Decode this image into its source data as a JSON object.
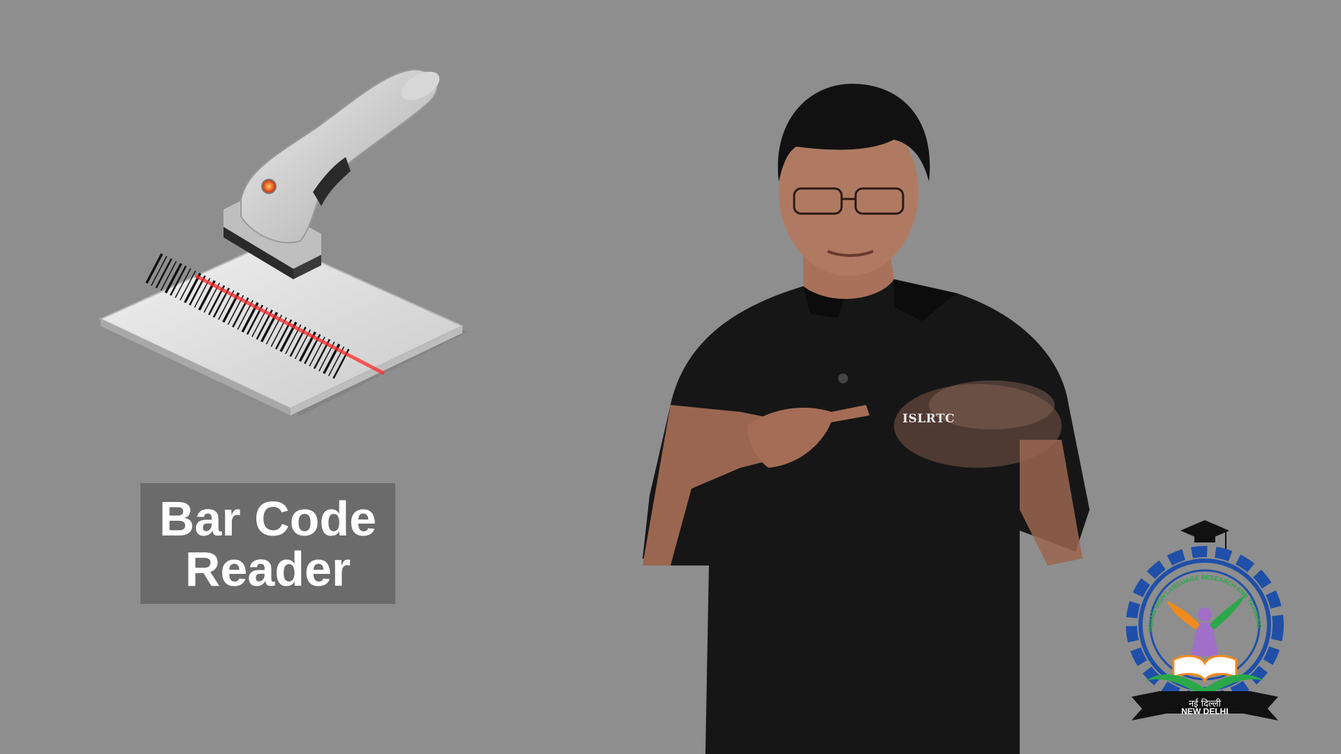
{
  "caption": {
    "text": "Bar Code\nReader"
  },
  "shirt_label": "ISLRTC",
  "logo": {
    "ring_text": "INDIAN SIGN LANGUAGE RESEARCH AND TRAINING CENTER",
    "city_hindi": "नई दिल्ली",
    "city_english": "NEW DELHI"
  },
  "icons": [
    "barcode-scanner-icon",
    "graduation-cap-icon",
    "gear-icon",
    "open-book-icon"
  ],
  "colors": {
    "background": "#8e8e8e",
    "caption_box": "#6b6b6b",
    "caption_text": "#ffffff",
    "logo_gear": "#1f4fa8",
    "logo_orange": "#f08a1c",
    "logo_green": "#2aa84a",
    "logo_purple": "#a070c8"
  }
}
